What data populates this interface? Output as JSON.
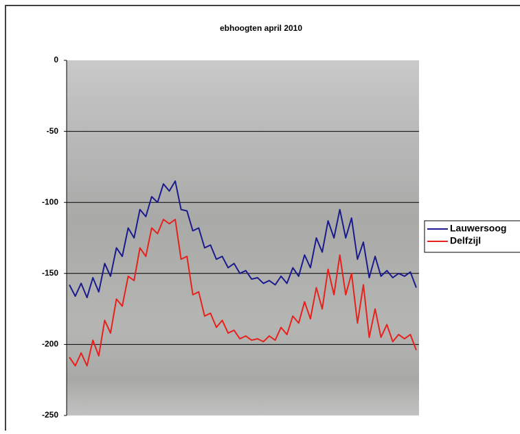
{
  "chart_data": {
    "type": "line",
    "title": "ebhoogten april 2010",
    "ylim": [
      -250,
      0
    ],
    "yticks": [
      -250,
      -200,
      -150,
      -100,
      -50,
      0
    ],
    "grid": true,
    "legend": "right",
    "series": [
      {
        "name": "Lauwersoog",
        "color": "#1a1a8c",
        "values": [
          -158,
          -166,
          -157,
          -167,
          -153,
          -163,
          -143,
          -152,
          -132,
          -138,
          -118,
          -125,
          -105,
          -110,
          -96,
          -100,
          -87,
          -92,
          -85,
          -105,
          -106,
          -120,
          -118,
          -132,
          -130,
          -140,
          -138,
          -146,
          -143,
          -150,
          -148,
          -154,
          -153,
          -157,
          -155,
          -158,
          -152,
          -157,
          -146,
          -152,
          -137,
          -146,
          -125,
          -135,
          -113,
          -125,
          -105,
          -125,
          -111,
          -140,
          -128,
          -153,
          -138,
          -152,
          -148,
          -153,
          -150,
          -152,
          -149,
          -160
        ]
      },
      {
        "name": "Delfzijl",
        "color": "#e8201c",
        "values": [
          -209,
          -215,
          -206,
          -215,
          -197,
          -208,
          -183,
          -192,
          -168,
          -173,
          -152,
          -155,
          -132,
          -138,
          -118,
          -122,
          -112,
          -115,
          -112,
          -140,
          -138,
          -165,
          -163,
          -180,
          -178,
          -188,
          -183,
          -192,
          -190,
          -196,
          -194,
          -197,
          -196,
          -198,
          -194,
          -197,
          -188,
          -193,
          -180,
          -185,
          -170,
          -182,
          -160,
          -175,
          -147,
          -165,
          -137,
          -165,
          -150,
          -185,
          -158,
          -195,
          -175,
          -195,
          -186,
          -198,
          -193,
          -196,
          -193,
          -204
        ]
      }
    ]
  }
}
